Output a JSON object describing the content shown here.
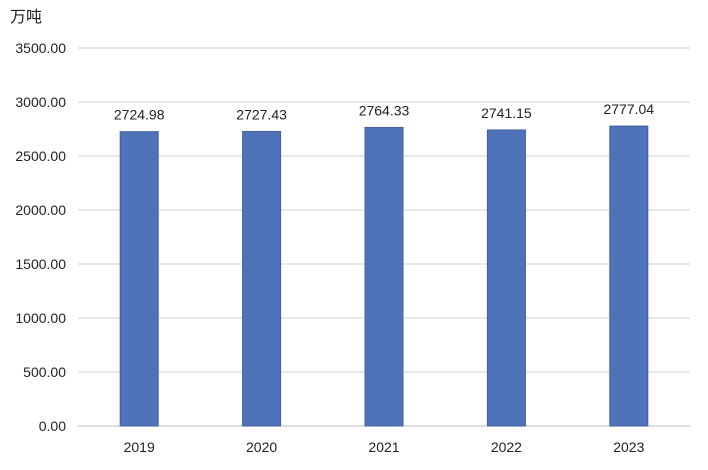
{
  "chart_data": {
    "type": "bar",
    "unit_label": "万吨",
    "categories": [
      "2019",
      "2020",
      "2021",
      "2022",
      "2023"
    ],
    "values": [
      2724.98,
      2727.43,
      2764.33,
      2741.15,
      2777.04
    ],
    "value_labels": [
      "2724.98",
      "2727.43",
      "2764.33",
      "2741.15",
      "2777.04"
    ],
    "y_ticks": [
      "0.00",
      "500.00",
      "1000.00",
      "1500.00",
      "2000.00",
      "2500.00",
      "3000.00",
      "3500.00"
    ],
    "ylim": [
      0,
      3500
    ],
    "grid": true,
    "colors": {
      "bar": "#4f72b8",
      "bar_edge": "#3f5f9e",
      "grid": "#d0d0d0",
      "text": "#222222"
    }
  }
}
